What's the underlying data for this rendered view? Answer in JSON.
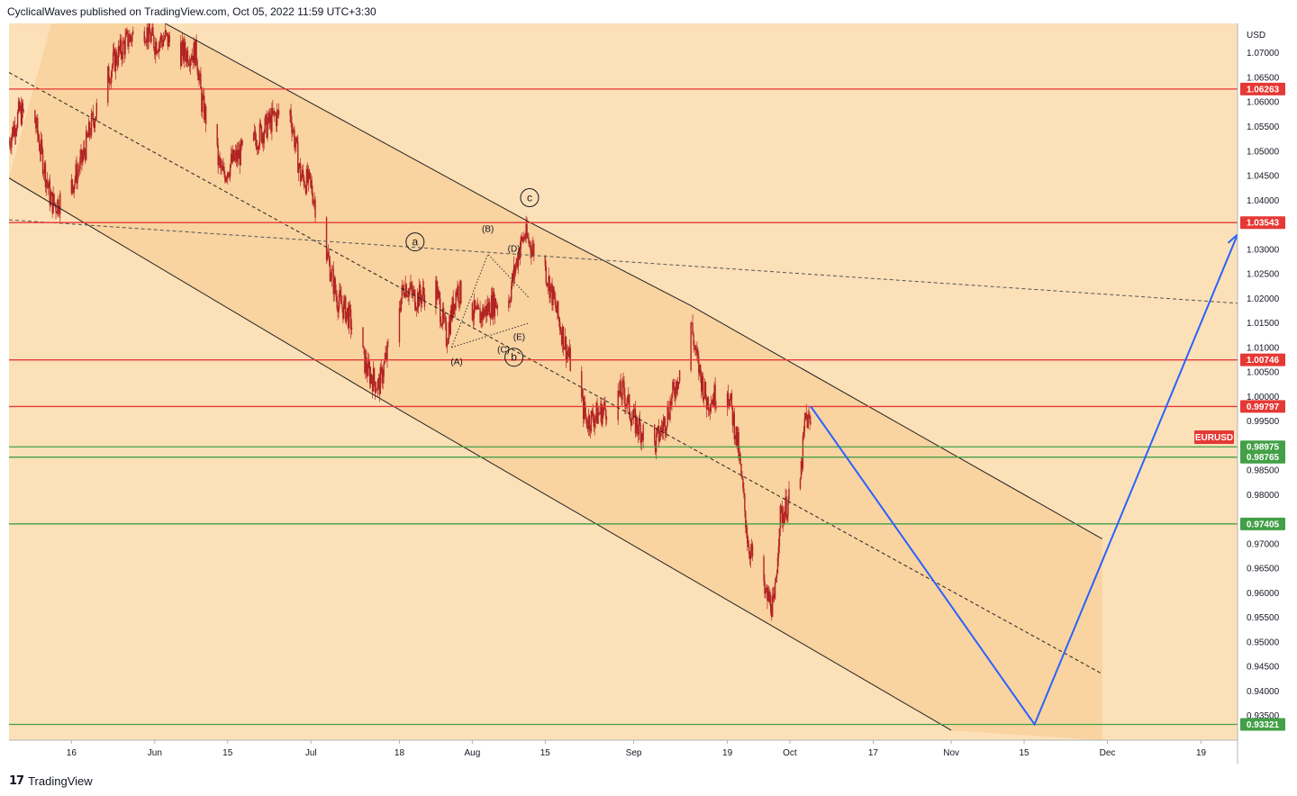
{
  "header": {
    "publisher_line": "CyclicalWaves published on TradingView.com, Oct 05, 2022 11:59 UTC+3:30"
  },
  "footer": {
    "brand": "TradingView",
    "logo_text": "17"
  },
  "colors": {
    "background": "#fce0b8",
    "channel_fill": "#f9d3a0",
    "candle": "#b22222",
    "resistance": "#e53935",
    "support": "#43a047",
    "projection": "#2962ff",
    "channel_line": "#222222"
  },
  "chart_data": {
    "type": "candlestick",
    "symbol": "EURUSD",
    "currency": "USD",
    "y_ticks": [
      "1.07000",
      "1.06500",
      "1.06000",
      "1.05500",
      "1.05000",
      "1.04500",
      "1.04000",
      "1.03500",
      "1.03000",
      "1.02500",
      "1.02000",
      "1.01500",
      "1.01000",
      "1.00500",
      "1.00000",
      "0.99500",
      "0.99000",
      "0.98500",
      "0.98000",
      "0.97500",
      "0.97000",
      "0.96500",
      "0.96000",
      "0.95500",
      "0.95000",
      "0.94500",
      "0.94000",
      "0.93500"
    ],
    "x_ticks": [
      {
        "label": "16",
        "date": "2022-05-16"
      },
      {
        "label": "Jun",
        "date": "2022-06-01"
      },
      {
        "label": "15",
        "date": "2022-06-15"
      },
      {
        "label": "Jul",
        "date": "2022-07-01"
      },
      {
        "label": "18",
        "date": "2022-07-18"
      },
      {
        "label": "Aug",
        "date": "2022-08-01"
      },
      {
        "label": "15",
        "date": "2022-08-15"
      },
      {
        "label": "Sep",
        "date": "2022-09-01"
      },
      {
        "label": "19",
        "date": "2022-09-19"
      },
      {
        "label": "Oct",
        "date": "2022-10-01"
      },
      {
        "label": "17",
        "date": "2022-10-17"
      },
      {
        "label": "Nov",
        "date": "2022-11-01"
      },
      {
        "label": "15",
        "date": "2022-11-15"
      },
      {
        "label": "Dec",
        "date": "2022-12-01"
      },
      {
        "label": "19",
        "date": "2022-12-19"
      }
    ],
    "price_path": [
      [
        "2022-05-04",
        1.052
      ],
      [
        "2022-05-06",
        1.058
      ],
      [
        "2022-05-09",
        1.056
      ],
      [
        "2022-05-12",
        1.04
      ],
      [
        "2022-05-13",
        1.039
      ],
      [
        "2022-05-16",
        1.043
      ],
      [
        "2022-05-18",
        1.048
      ],
      [
        "2022-05-20",
        1.056
      ],
      [
        "2022-05-24",
        1.068
      ],
      [
        "2022-05-27",
        1.073
      ],
      [
        "2022-05-30",
        1.075
      ],
      [
        "2022-06-01",
        1.072
      ],
      [
        "2022-06-03",
        1.073
      ],
      [
        "2022-06-06",
        1.07
      ],
      [
        "2022-06-09",
        1.07
      ],
      [
        "2022-06-10",
        1.06
      ],
      [
        "2022-06-14",
        1.045
      ],
      [
        "2022-06-16",
        1.048
      ],
      [
        "2022-06-20",
        1.052
      ],
      [
        "2022-06-24",
        1.057
      ],
      [
        "2022-06-27",
        1.058
      ],
      [
        "2022-06-29",
        1.045
      ],
      [
        "2022-07-01",
        1.043
      ],
      [
        "2022-07-06",
        1.02
      ],
      [
        "2022-07-08",
        1.017
      ],
      [
        "2022-07-12",
        1.005
      ],
      [
        "2022-07-14",
        1.002
      ],
      [
        "2022-07-15",
        1.006
      ],
      [
        "2022-07-19",
        1.023
      ],
      [
        "2022-07-21",
        1.02
      ],
      [
        "2022-07-25",
        1.022
      ],
      [
        "2022-07-27",
        1.012
      ],
      [
        "2022-07-29",
        1.022
      ],
      [
        "2022-08-02",
        1.016
      ],
      [
        "2022-08-05",
        1.019
      ],
      [
        "2022-08-08",
        1.02
      ],
      [
        "2022-08-10",
        1.03
      ],
      [
        "2022-08-11",
        1.033
      ],
      [
        "2022-08-15",
        1.026
      ],
      [
        "2022-08-17",
        1.018
      ],
      [
        "2022-08-19",
        1.01
      ],
      [
        "2022-08-23",
        0.995
      ],
      [
        "2022-08-26",
        0.997
      ],
      [
        "2022-08-30",
        1.001
      ],
      [
        "2022-09-01",
        0.995
      ],
      [
        "2022-09-05",
        0.99
      ],
      [
        "2022-09-07",
        0.995
      ],
      [
        "2022-09-09",
        1.002
      ],
      [
        "2022-09-12",
        1.015
      ],
      [
        "2022-09-13",
        1.008
      ],
      [
        "2022-09-15",
        0.999
      ],
      [
        "2022-09-19",
        1.002
      ],
      [
        "2022-09-21",
        0.99
      ],
      [
        "2022-09-23",
        0.97
      ],
      [
        "2022-09-26",
        0.96
      ],
      [
        "2022-09-28",
        0.957
      ],
      [
        "2022-09-29",
        0.975
      ],
      [
        "2022-10-03",
        0.983
      ],
      [
        "2022-10-04",
        0.996
      ],
      [
        "2022-10-05",
        0.994
      ]
    ],
    "resistance_levels": [
      "1.06263",
      "1.03543",
      "1.00746",
      "0.99797"
    ],
    "support_levels": [
      "0.98975",
      "0.98765",
      "0.97405",
      "0.93321"
    ],
    "last_price_label": "EURUSD",
    "wave_labels": {
      "circled": [
        "a",
        "b",
        "c"
      ],
      "triangle": [
        "(A)",
        "(B)",
        "(C)",
        "(D)",
        "(E)"
      ]
    },
    "projection": [
      [
        "2022-10-05",
        0.998
      ],
      [
        "2022-11-17",
        0.93321
      ],
      [
        "2022-12-26",
        1.033
      ]
    ],
    "channel": {
      "upper": [
        [
          "2022-05-15",
          1.087
        ],
        [
          "2022-08-12",
          1.0355
        ],
        [
          "2022-09-12",
          1.0185
        ],
        [
          "2022-11-30",
          0.971
        ]
      ],
      "lower": [
        [
          "2022-05-04",
          1.0445
        ],
        [
          "2022-07-12",
          1.001
        ],
        [
          "2022-09-28",
          0.953
        ],
        [
          "2022-11-01",
          0.932
        ]
      ],
      "midline": [
        [
          "2022-05-04",
          1.066
        ],
        [
          "2022-11-30",
          0.9435
        ]
      ]
    },
    "long_dashed_line": [
      [
        "2022-05-04",
        1.036
      ],
      [
        "2022-12-26",
        1.019
      ]
    ],
    "ylim": [
      0.93,
      1.076
    ],
    "grid": false
  }
}
